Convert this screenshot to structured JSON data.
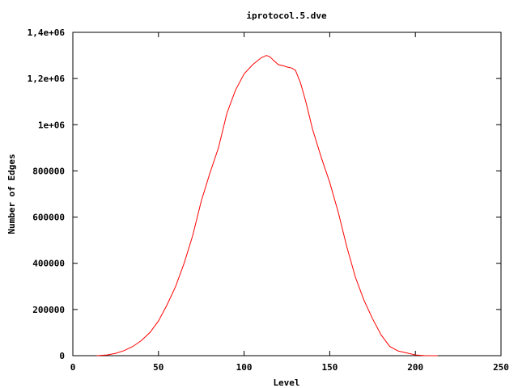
{
  "chart_data": {
    "type": "line",
    "title": "iprotocol.5.dve",
    "xlabel": "Level",
    "ylabel": "Number of Edges",
    "xlim": [
      0,
      250
    ],
    "ylim": [
      0,
      1400000
    ],
    "x_ticks": [
      {
        "value": 0,
        "label": "0"
      },
      {
        "value": 50,
        "label": "50"
      },
      {
        "value": 100,
        "label": "100"
      },
      {
        "value": 150,
        "label": "150"
      },
      {
        "value": 200,
        "label": "200"
      },
      {
        "value": 250,
        "label": "250"
      }
    ],
    "y_ticks": [
      {
        "value": 0,
        "label": "0"
      },
      {
        "value": 200000,
        "label": "200000"
      },
      {
        "value": 400000,
        "label": "400000"
      },
      {
        "value": 600000,
        "label": "600000"
      },
      {
        "value": 800000,
        "label": "800000"
      },
      {
        "value": 1000000,
        "label": "1e+06"
      },
      {
        "value": 1200000,
        "label": "1,2e+06"
      },
      {
        "value": 1400000,
        "label": "1,4e+06"
      }
    ],
    "grid": false,
    "legend": "none",
    "series_color": "#ff0000",
    "series": [
      {
        "x": [
          14,
          20,
          25,
          30,
          35,
          40,
          45,
          50,
          55,
          60,
          65,
          70,
          75,
          80,
          85,
          90,
          95,
          100,
          105,
          110,
          113,
          115,
          117,
          120,
          123,
          125,
          128,
          130,
          133,
          136,
          140,
          145,
          150,
          155,
          160,
          165,
          170,
          175,
          180,
          185,
          190,
          195,
          200,
          205,
          210,
          213
        ],
        "y": [
          0,
          3000,
          10000,
          22000,
          40000,
          65000,
          100000,
          150000,
          220000,
          300000,
          400000,
          520000,
          670000,
          790000,
          900000,
          1050000,
          1150000,
          1220000,
          1260000,
          1290000,
          1300000,
          1295000,
          1280000,
          1260000,
          1255000,
          1250000,
          1245000,
          1235000,
          1180000,
          1100000,
          980000,
          860000,
          750000,
          620000,
          470000,
          340000,
          240000,
          160000,
          90000,
          40000,
          20000,
          12000,
          3000,
          500,
          0,
          0
        ]
      }
    ]
  }
}
